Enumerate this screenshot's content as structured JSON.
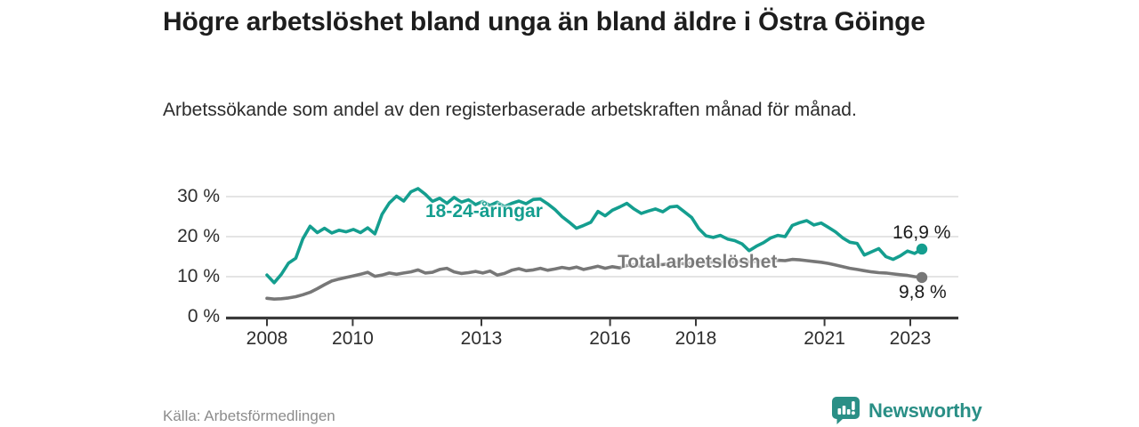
{
  "header": {
    "title": "Högre arbetslöshet bland unga än bland äldre i Östra Göinge",
    "subtitle": "Arbetssökande som andel av den registerbaserade arbetskraften månad för månad."
  },
  "footer": {
    "source": "Källa: Arbetsförmedlingen",
    "brand_name": "Newsworthy"
  },
  "colors": {
    "youth_line": "#149e8f",
    "total_line": "#777777",
    "axis": "#3a3a3a",
    "gridline": "#dcdcdc",
    "brand_teal": "#2a8f86",
    "value_label_text": "#1a1a1a"
  },
  "chart_data": {
    "type": "line",
    "title": "Högre arbetslöshet bland unga än bland äldre i Östra Göinge",
    "subtitle": "Arbetssökande som andel av den registerbaserade arbetskraften månad för månad.",
    "xlabel": "",
    "ylabel": "",
    "grid": "horizontal",
    "legend_position": "inline-labels",
    "x_range_years": [
      2008.0,
      2023.25
    ],
    "x_resolution": "monthly (values sampled every 2 months)",
    "ylim": [
      0,
      33
    ],
    "yticks": [
      {
        "value": 30,
        "label": "30 %"
      },
      {
        "value": 20,
        "label": "20 %"
      },
      {
        "value": 10,
        "label": "10 %"
      },
      {
        "value": 0,
        "label": "0 %"
      }
    ],
    "xticks": [
      {
        "value": 2008,
        "label": "2008"
      },
      {
        "value": 2010,
        "label": "2010"
      },
      {
        "value": 2013,
        "label": "2013"
      },
      {
        "value": 2016,
        "label": "2016"
      },
      {
        "value": 2018,
        "label": "2018"
      },
      {
        "value": 2021,
        "label": "2021"
      },
      {
        "value": 2023,
        "label": "2023"
      }
    ],
    "series": [
      {
        "name": "18-24-åringar",
        "color": "#149e8f",
        "end_value": 16.9,
        "end_label": "16,9 %",
        "values": [
          10.4,
          8.5,
          10.6,
          13.4,
          14.6,
          19.5,
          22.6,
          21.0,
          22.1,
          20.9,
          21.6,
          21.2,
          21.8,
          21.0,
          22.2,
          20.7,
          25.6,
          28.4,
          30.1,
          28.9,
          31.2,
          32.0,
          30.6,
          28.8,
          29.6,
          28.3,
          29.8,
          28.6,
          29.2,
          28.0,
          28.8,
          27.8,
          28.6,
          27.5,
          28.3,
          28.9,
          28.2,
          29.3,
          29.4,
          28.2,
          26.8,
          25.0,
          23.6,
          22.1,
          22.8,
          23.6,
          26.3,
          25.2,
          26.6,
          27.4,
          28.3,
          26.9,
          25.8,
          26.4,
          26.9,
          26.2,
          27.4,
          27.6,
          26.2,
          24.8,
          22.0,
          20.2,
          19.8,
          20.3,
          19.4,
          19.0,
          18.2,
          16.5,
          17.6,
          18.5,
          19.7,
          20.3,
          20.0,
          22.8,
          23.5,
          24.0,
          22.9,
          23.4,
          22.3,
          21.2,
          19.7,
          18.6,
          18.3,
          15.4,
          16.2,
          17.0,
          15.0,
          14.3,
          15.2,
          16.4,
          15.8,
          16.9
        ]
      },
      {
        "name": "Total arbetslöshet",
        "color": "#777777",
        "end_value": 9.8,
        "end_label": "9,8 %",
        "values": [
          4.6,
          4.4,
          4.5,
          4.7,
          5.0,
          5.5,
          6.1,
          7.0,
          8.0,
          8.9,
          9.4,
          9.8,
          10.2,
          10.6,
          11.1,
          10.1,
          10.4,
          10.9,
          10.6,
          10.9,
          11.2,
          11.7,
          10.9,
          11.1,
          11.8,
          12.1,
          11.2,
          10.8,
          11.0,
          11.3,
          10.9,
          11.4,
          10.4,
          10.8,
          11.6,
          12.0,
          11.5,
          11.7,
          12.1,
          11.6,
          11.9,
          12.3,
          12.0,
          12.4,
          11.8,
          12.2,
          12.6,
          12.1,
          12.5,
          12.2,
          12.8,
          13.0,
          12.6,
          12.9,
          13.1,
          13.0,
          13.3,
          13.5,
          13.2,
          13.4,
          13.6,
          13.4,
          13.7,
          13.5,
          13.8,
          13.6,
          13.9,
          13.7,
          13.8,
          14.0,
          13.8,
          14.1,
          14.0,
          14.3,
          14.2,
          14.0,
          13.8,
          13.6,
          13.3,
          12.9,
          12.5,
          12.1,
          11.8,
          11.5,
          11.2,
          11.0,
          10.9,
          10.7,
          10.5,
          10.3,
          10.0,
          9.8
        ]
      }
    ]
  }
}
